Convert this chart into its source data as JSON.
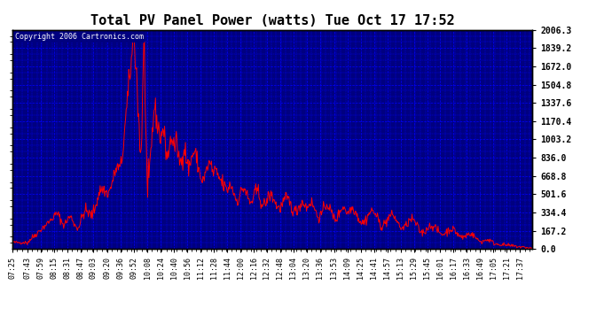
{
  "title": "Total PV Panel Power (watts) Tue Oct 17 17:52",
  "copyright": "Copyright 2006 Cartronics.com",
  "outer_bg": "#000000",
  "plot_bg_color": "#000080",
  "line_color": "#ff0000",
  "grid_color": "#0000ff",
  "title_bg": "#ffffff",
  "title_color": "#000000",
  "label_color": "#000000",
  "ytick_labels": [
    "0.0",
    "167.2",
    "334.4",
    "501.6",
    "668.8",
    "836.0",
    "1003.2",
    "1170.4",
    "1337.6",
    "1504.8",
    "1672.0",
    "1839.2",
    "2006.3"
  ],
  "ytick_values": [
    0.0,
    167.2,
    334.4,
    501.6,
    668.8,
    836.0,
    1003.2,
    1170.4,
    1337.6,
    1504.8,
    1672.0,
    1839.2,
    2006.3
  ],
  "xtick_labels": [
    "07:25",
    "07:43",
    "07:59",
    "08:15",
    "08:31",
    "08:47",
    "09:03",
    "09:20",
    "09:36",
    "09:52",
    "10:08",
    "10:24",
    "10:40",
    "10:56",
    "11:12",
    "11:28",
    "11:44",
    "12:00",
    "12:16",
    "12:32",
    "12:48",
    "13:04",
    "13:20",
    "13:36",
    "13:53",
    "14:09",
    "14:25",
    "14:41",
    "14:57",
    "15:13",
    "15:29",
    "15:45",
    "16:01",
    "16:17",
    "16:33",
    "16:49",
    "17:05",
    "17:21",
    "17:37"
  ],
  "ymin": 0.0,
  "ymax": 2006.3
}
